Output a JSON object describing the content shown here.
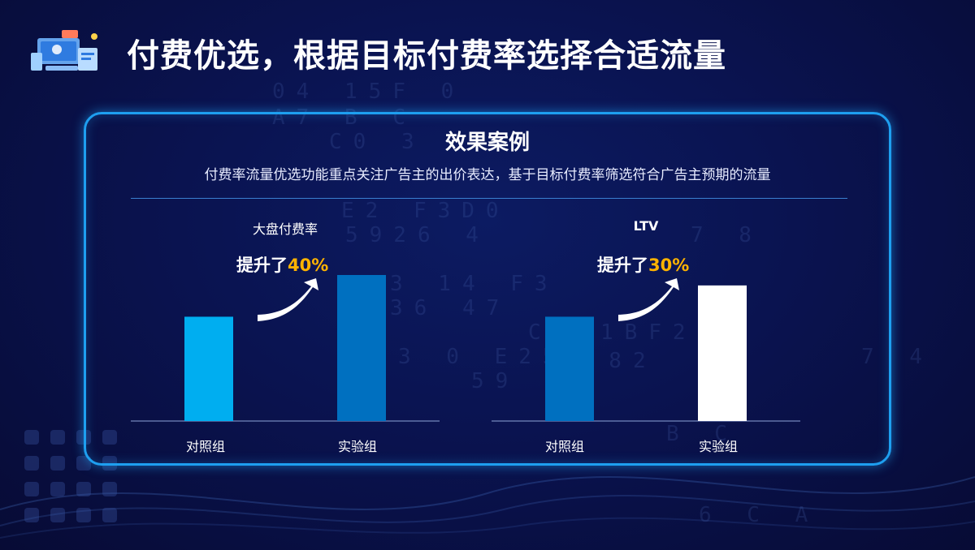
{
  "title": "付费优选，根据目标付费率选择合适流量",
  "panel": {
    "heading": "效果案例",
    "description": "付费率流量优选功能重点关注广告主的出价表达，基于目标付费率筛选符合广告主预期的流量"
  },
  "colors": {
    "accent": "#1e9ff0",
    "highlight": "#ffb300",
    "bar_light_blue": "#00aef0",
    "bar_dark_blue": "#0070c0",
    "bar_white": "#ffffff"
  },
  "chart_data": [
    {
      "type": "bar",
      "title": "大盘付费率",
      "categories": [
        "对照组",
        "实验组"
      ],
      "values": [
        100,
        140
      ],
      "colors": [
        "#00aef0",
        "#0070c0"
      ],
      "annotation": {
        "prefix": "提升了",
        "value": "40%"
      },
      "ylim": [
        0,
        140
      ]
    },
    {
      "type": "bar",
      "title": "LTV",
      "categories": [
        "对照组",
        "实验组"
      ],
      "values": [
        100,
        130
      ],
      "colors": [
        "#0070c0",
        "#ffffff"
      ],
      "annotation": {
        "prefix": "提升了",
        "value": "30%"
      },
      "ylim": [
        0,
        140
      ]
    }
  ]
}
